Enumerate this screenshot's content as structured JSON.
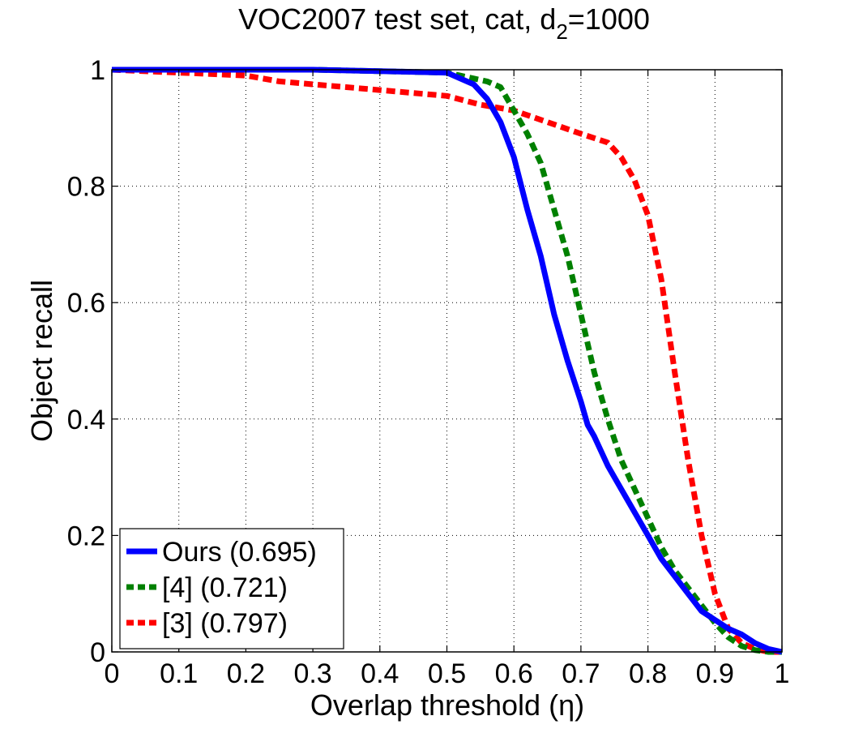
{
  "chart_data": {
    "type": "line",
    "title": "VOC2007 test set, cat, d",
    "title_subscript": "2",
    "title_suffix": "=1000",
    "xlabel": "Overlap threshold (η)",
    "ylabel": "Object recall",
    "xlim": [
      0,
      1
    ],
    "ylim": [
      0,
      1
    ],
    "grid": true,
    "legend_position": "bottom-left",
    "x_ticks": [
      0,
      0.1,
      0.2,
      0.3,
      0.4,
      0.5,
      0.6,
      0.7,
      0.8,
      0.9,
      1
    ],
    "x_tick_labels": [
      "0",
      "0.1",
      "0.2",
      "0.3",
      "0.4",
      "0.5",
      "0.6",
      "0.7",
      "0.8",
      "0.9",
      "1"
    ],
    "y_ticks": [
      0,
      0.2,
      0.4,
      0.6,
      0.8,
      1
    ],
    "y_tick_labels": [
      "0",
      "0.2",
      "0.4",
      "0.6",
      "0.8",
      "1"
    ],
    "series": [
      {
        "name": "Ours (0.695)",
        "color": "#0000ff",
        "style": "solid",
        "x": [
          0,
          0.3,
          0.5,
          0.52,
          0.54,
          0.56,
          0.58,
          0.6,
          0.62,
          0.64,
          0.66,
          0.68,
          0.7,
          0.71,
          0.72,
          0.74,
          0.76,
          0.78,
          0.8,
          0.82,
          0.84,
          0.86,
          0.88,
          0.9,
          0.92,
          0.94,
          0.96,
          0.98,
          1.0
        ],
        "y": [
          1.0,
          1.0,
          0.995,
          0.985,
          0.975,
          0.95,
          0.91,
          0.85,
          0.76,
          0.68,
          0.58,
          0.5,
          0.43,
          0.39,
          0.37,
          0.32,
          0.28,
          0.24,
          0.2,
          0.16,
          0.13,
          0.1,
          0.07,
          0.055,
          0.04,
          0.03,
          0.015,
          0.005,
          0.0
        ]
      },
      {
        "name": "[4] (0.721)",
        "color": "#008000",
        "style": "dashed",
        "x": [
          0,
          0.3,
          0.5,
          0.52,
          0.54,
          0.56,
          0.58,
          0.6,
          0.62,
          0.64,
          0.66,
          0.68,
          0.7,
          0.72,
          0.74,
          0.76,
          0.78,
          0.8,
          0.82,
          0.84,
          0.86,
          0.88,
          0.9,
          0.92,
          0.94,
          0.96,
          0.98,
          1.0
        ],
        "y": [
          1.0,
          1.0,
          0.995,
          0.99,
          0.985,
          0.98,
          0.97,
          0.93,
          0.89,
          0.84,
          0.76,
          0.68,
          0.58,
          0.48,
          0.4,
          0.33,
          0.28,
          0.23,
          0.18,
          0.14,
          0.11,
          0.08,
          0.05,
          0.025,
          0.01,
          0.003,
          0.0,
          0.0
        ]
      },
      {
        "name": "[3] (0.797)",
        "color": "#ff0000",
        "style": "dashed",
        "x": [
          0,
          0.1,
          0.2,
          0.25,
          0.3,
          0.35,
          0.4,
          0.45,
          0.5,
          0.55,
          0.6,
          0.65,
          0.7,
          0.74,
          0.76,
          0.78,
          0.8,
          0.82,
          0.84,
          0.86,
          0.88,
          0.9,
          0.92,
          0.94,
          0.96,
          0.98,
          1.0
        ],
        "y": [
          1.0,
          0.995,
          0.99,
          0.98,
          0.975,
          0.97,
          0.965,
          0.96,
          0.955,
          0.94,
          0.93,
          0.91,
          0.89,
          0.875,
          0.85,
          0.81,
          0.75,
          0.64,
          0.48,
          0.33,
          0.2,
          0.1,
          0.04,
          0.015,
          0.005,
          0.0,
          0.0
        ]
      }
    ]
  }
}
